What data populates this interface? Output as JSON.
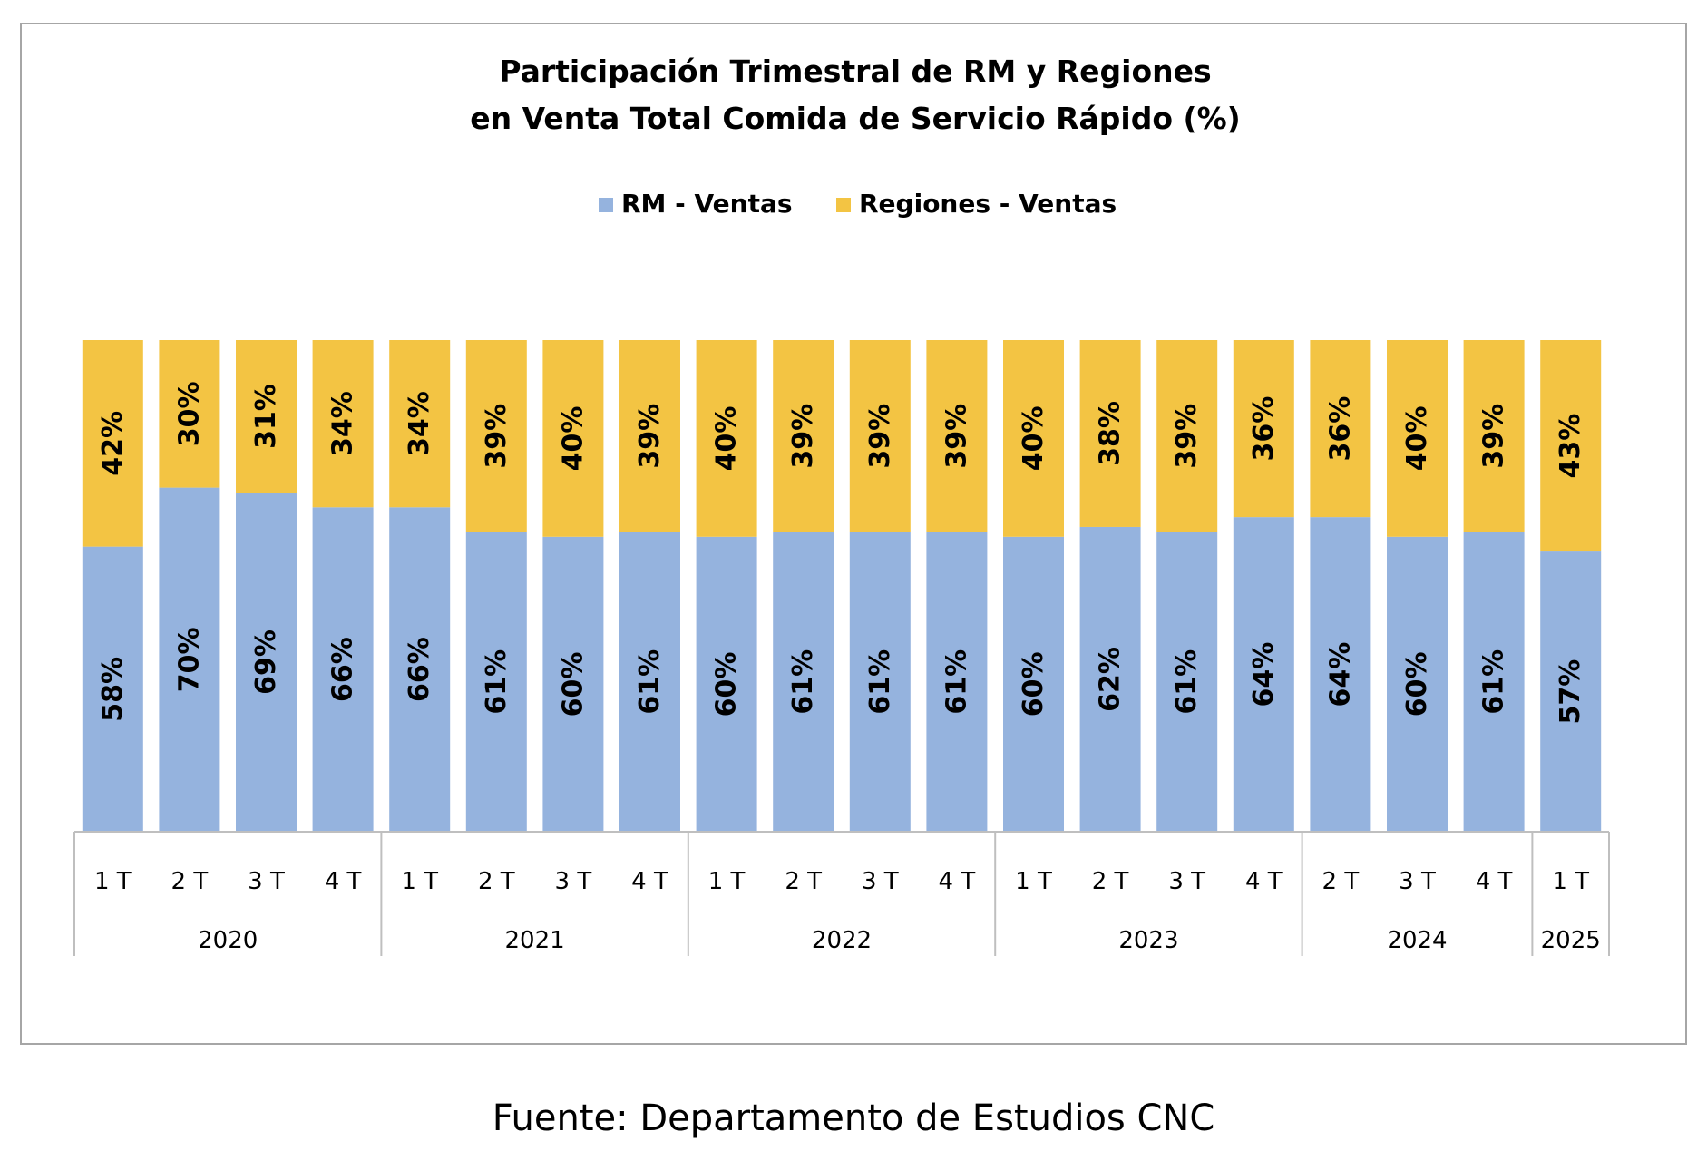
{
  "chart_data": {
    "type": "bar",
    "stacked": true,
    "title_lines": [
      "Participación Trimestral de RM y Regiones",
      "en Venta Total Comida de Servicio Rápido (%)"
    ],
    "legend_position": "top",
    "categories": [
      "1 T",
      "2 T",
      "3 T",
      "4 T",
      "1 T",
      "2 T",
      "3 T",
      "4 T",
      "1 T",
      "2 T",
      "3 T",
      "4 T",
      "1 T",
      "2 T",
      "3 T",
      "4 T",
      "2 T",
      "3 T",
      "4 T",
      "1 T"
    ],
    "category_years": [
      "2020",
      "2020",
      "2020",
      "2020",
      "2021",
      "2021",
      "2021",
      "2021",
      "2022",
      "2022",
      "2022",
      "2022",
      "2023",
      "2023",
      "2023",
      "2023",
      "2024",
      "2024",
      "2024",
      "2025"
    ],
    "groups": [
      {
        "label": "2020",
        "count": 4
      },
      {
        "label": "2021",
        "count": 4
      },
      {
        "label": "2022",
        "count": 4
      },
      {
        "label": "2023",
        "count": 4
      },
      {
        "label": "2024",
        "count": 3
      },
      {
        "label": "2025",
        "count": 1
      }
    ],
    "series": [
      {
        "name": "RM - Ventas",
        "color": "#95b3de",
        "values": [
          58,
          70,
          69,
          66,
          66,
          61,
          60,
          61,
          60,
          61,
          61,
          61,
          60,
          62,
          61,
          64,
          64,
          60,
          61,
          57
        ],
        "labels": [
          "58%",
          "70%",
          "69%",
          "66%",
          "66%",
          "61%",
          "60%",
          "61%",
          "60%",
          "61%",
          "61%",
          "61%",
          "60%",
          "62%",
          "61%",
          "64%",
          "64%",
          "60%",
          "61%",
          "57%"
        ]
      },
      {
        "name": "Regiones - Ventas",
        "color": "#f3c443",
        "values": [
          42,
          30,
          31,
          34,
          34,
          39,
          40,
          39,
          40,
          39,
          39,
          39,
          40,
          38,
          39,
          36,
          36,
          40,
          39,
          43
        ],
        "labels": [
          "42%",
          "30%",
          "31%",
          "34%",
          "34%",
          "39%",
          "40%",
          "39%",
          "40%",
          "39%",
          "39%",
          "39%",
          "40%",
          "38%",
          "39%",
          "36%",
          "36%",
          "40%",
          "39%",
          "43%"
        ]
      }
    ],
    "ylim": [
      0,
      100
    ],
    "grid": false
  },
  "source": "Fuente: Departamento de Estudios CNC"
}
